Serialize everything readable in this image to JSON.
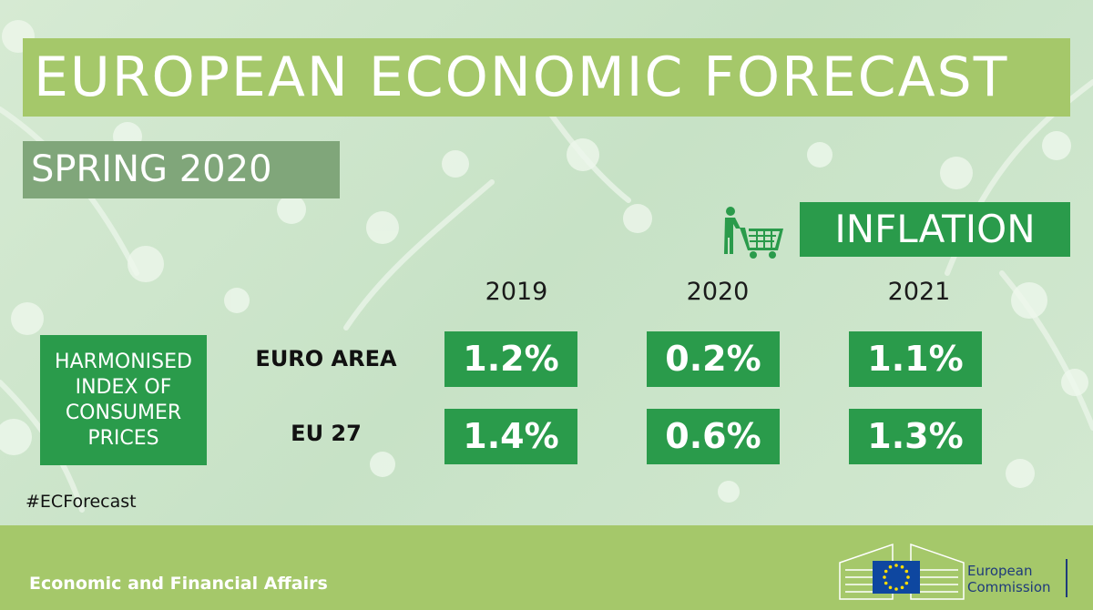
{
  "header": {
    "title": "EUROPEAN ECONOMIC FORECAST",
    "subtitle": "SPRING 2020"
  },
  "topic": {
    "label": "INFLATION",
    "icon": "shopping-cart-person-icon"
  },
  "table": {
    "indicator": "HARMONISED\nINDEX OF\nCONSUMER\nPRICES",
    "years": [
      "2019",
      "2020",
      "2021"
    ],
    "rows": [
      {
        "label": "EURO AREA",
        "values": [
          "1.2%",
          "0.2%",
          "1.1%"
        ]
      },
      {
        "label": "EU 27",
        "values": [
          "1.4%",
          "0.6%",
          "1.3%"
        ]
      }
    ]
  },
  "hashtag": "#ECForecast",
  "footer": {
    "department": "Economic and Financial Affairs",
    "org_name": "European\nCommission",
    "logo_icon": "european-commission-logo-icon"
  },
  "colors": {
    "background": "#cfe6cf",
    "title_banner": "#a5c86a",
    "subtitle_box": "#80a67a",
    "accent_green": "#2a9b4b",
    "footer": "#a5c86a",
    "ec_blue": "#1e3a7b",
    "eu_flag_blue": "#0e47a0",
    "eu_star_yellow": "#ffdd00"
  }
}
